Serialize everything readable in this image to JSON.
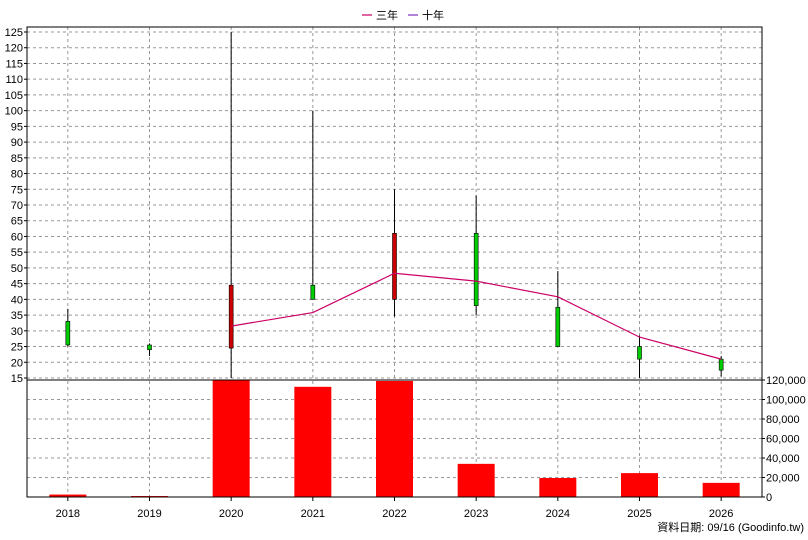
{
  "legend": {
    "items": [
      {
        "name": "三年",
        "color": "#cc0066"
      },
      {
        "name": "十年",
        "color": "#7b2fbf"
      }
    ]
  },
  "source_note": "資料日期: 09/16  (Goodinfo.tw)",
  "chart_data": [
    {
      "type": "candlestick",
      "x": [
        "2018",
        "2019",
        "2020",
        "2021",
        "2022",
        "2023",
        "2024",
        "2025",
        "2026"
      ],
      "ylim": [
        15,
        125
      ],
      "yticks": [
        15,
        20,
        25,
        30,
        35,
        40,
        45,
        50,
        55,
        60,
        65,
        70,
        75,
        80,
        85,
        90,
        95,
        100,
        105,
        110,
        115,
        120,
        125
      ],
      "grid": true,
      "candles": [
        {
          "year": "2018",
          "open": 25.5,
          "close": 33,
          "high": 37,
          "low": 25,
          "color": "#00cc00"
        },
        {
          "year": "2019",
          "open": 24,
          "close": 25.5,
          "high": 26,
          "low": 22,
          "color": "#00cc00"
        },
        {
          "year": "2020",
          "open": 24.5,
          "close": 44.5,
          "high": 125,
          "low": 15,
          "color": "#cc0000"
        },
        {
          "year": "2021",
          "open": 44.5,
          "close": 40,
          "high": 100,
          "low": 40,
          "color": "#00cc00"
        },
        {
          "year": "2022",
          "open": 40,
          "close": 61,
          "high": 75,
          "low": 34.5,
          "color": "#cc0000"
        },
        {
          "year": "2023",
          "open": 61,
          "close": 38,
          "high": 73,
          "low": 35,
          "color": "#00cc00"
        },
        {
          "year": "2024",
          "open": 37.5,
          "close": 25,
          "high": 49,
          "low": 25,
          "color": "#00cc00"
        },
        {
          "year": "2025",
          "open": 25,
          "close": 21,
          "high": 28.5,
          "low": 15,
          "color": "#00cc00"
        },
        {
          "year": "2026",
          "open": 21,
          "close": 17.5,
          "high": 22,
          "low": 15.5,
          "color": "#00cc00"
        }
      ],
      "series": [
        {
          "name": "三年",
          "color": "#cc0066",
          "points": [
            [
              "2020",
              31.5
            ],
            [
              "2021",
              35.8
            ],
            [
              "2022",
              48.3
            ],
            [
              "2023",
              45.8
            ],
            [
              "2024",
              40.8
            ],
            [
              "2025",
              28
            ],
            [
              "2026",
              21
            ]
          ]
        }
      ]
    },
    {
      "type": "bar",
      "categories": [
        "2018",
        "2019",
        "2020",
        "2021",
        "2022",
        "2023",
        "2024",
        "2025",
        "2026"
      ],
      "values": [
        2500,
        1000,
        120000,
        113000,
        119000,
        34000,
        19500,
        24500,
        14500
      ],
      "ylim": [
        0,
        120000
      ],
      "yticks": [
        0,
        20000,
        40000,
        60000,
        80000,
        100000,
        120000
      ],
      "ytick_labels": [
        "0",
        "20,000",
        "40,000",
        "60,000",
        "80,000",
        "100,000",
        "120,000"
      ],
      "color": "#ff0000"
    }
  ]
}
